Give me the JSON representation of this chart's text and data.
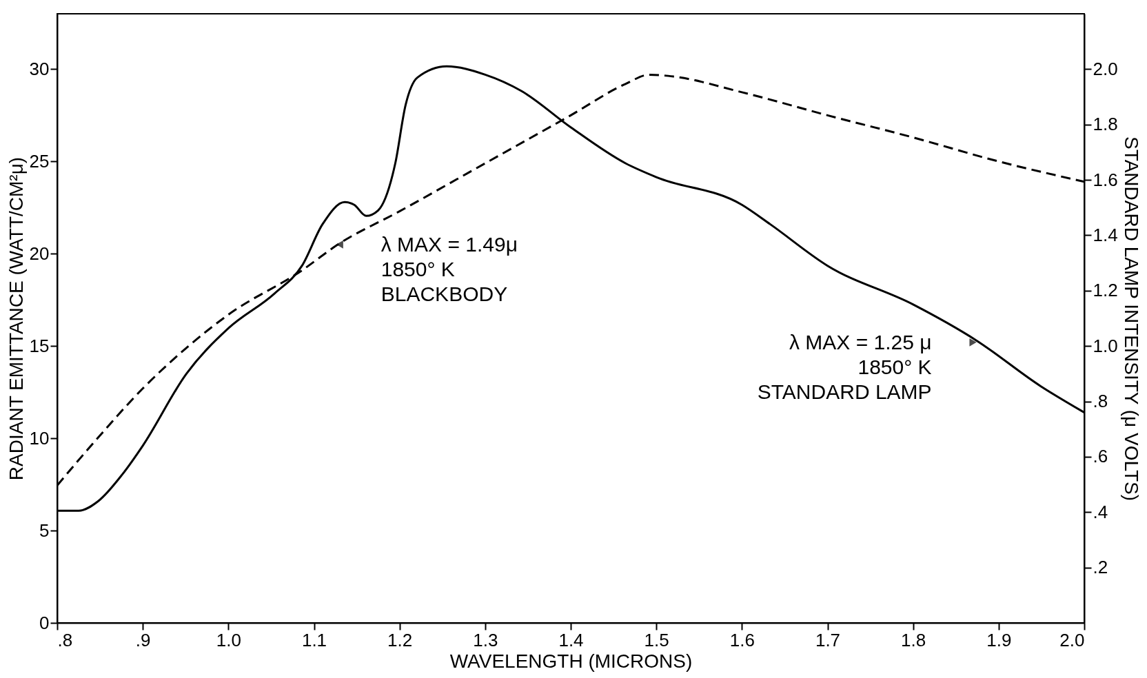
{
  "chart_data": {
    "type": "line",
    "xlabel": "WAVELENGTH (MICRONS)",
    "ylabel": "RADIANT EMITTANCE (WATT/CM²μ)",
    "y2label": "STANDARD LAMP INTENSITY (μ VOLTS)",
    "xlim": [
      0.8,
      2.0
    ],
    "xticks": [
      {
        "value": 0.8,
        "label": ".8"
      },
      {
        "value": 0.9,
        "label": ".9"
      },
      {
        "value": 1.0,
        "label": "1.0"
      },
      1.1,
      1.2,
      1.3,
      1.4,
      1.5,
      1.6,
      1.7,
      1.8,
      1.9,
      {
        "value": 2.0,
        "label": "2.0"
      }
    ],
    "ylim": [
      0,
      33
    ],
    "yticks": [
      0,
      5,
      10,
      15,
      20,
      25,
      30
    ],
    "y2lim": [
      0,
      2.2
    ],
    "y2ticks": [
      {
        "value": 0.2,
        "label": ".2"
      },
      {
        "value": 0.4,
        "label": ".4"
      },
      {
        "value": 0.6,
        "label": ".6"
      },
      {
        "value": 0.8,
        "label": ".8"
      },
      {
        "value": 1.0,
        "label": "1.0"
      },
      1.2,
      1.4,
      1.6,
      1.8,
      {
        "value": 2.0,
        "label": "2.0"
      }
    ],
    "grid": false,
    "series": [
      {
        "color": "#000000",
        "line_style": "dashed",
        "x": [
          0.8,
          0.848,
          0.9,
          0.951,
          1.0,
          1.086,
          1.128,
          1.2,
          1.3,
          1.4,
          1.464,
          1.492,
          1.52,
          1.6,
          1.7,
          1.8,
          1.9,
          2.0
        ],
        "values": [
          7.45,
          10.05,
          12.7,
          14.9,
          16.7,
          19.1,
          20.5,
          22.3,
          24.9,
          27.5,
          29.2,
          29.7,
          29.6,
          28.75,
          27.5,
          26.3,
          25.0,
          23.9
        ]
      },
      {
        "color": "#000000",
        "line_style": "solid",
        "axis": "y2",
        "x": [
          0.8,
          0.825,
          0.848,
          0.876,
          0.9,
          0.951,
          1.0,
          1.054,
          1.086,
          1.11,
          1.136,
          1.147,
          1.161,
          1.175,
          1.195,
          1.207,
          1.221,
          1.255,
          1.3,
          1.343,
          1.4,
          1.464,
          1.5,
          1.6,
          1.633,
          1.7,
          1.8,
          1.874,
          1.949,
          2.0
        ],
        "values": [
          0.405,
          0.405,
          0.44,
          0.536,
          0.64,
          0.9,
          1.064,
          1.19,
          1.29,
          1.44,
          1.52,
          1.51,
          1.47,
          1.49,
          1.66,
          1.87,
          1.97,
          2.01,
          1.98,
          1.92,
          1.79,
          1.66,
          1.61,
          1.51,
          1.44,
          1.29,
          1.15,
          1.02,
          0.855,
          0.76
        ]
      }
    ],
    "annotations": [
      {
        "text": "λ MAX = 1.49μ\n1850° K\nBLACKBODY",
        "x": 1.13,
        "y": 20.5
      },
      {
        "text": "λ MAX = 1.25 μ\n1850° K\nSTANDARD LAMP",
        "x": 1.87,
        "y": 15.2
      }
    ]
  }
}
